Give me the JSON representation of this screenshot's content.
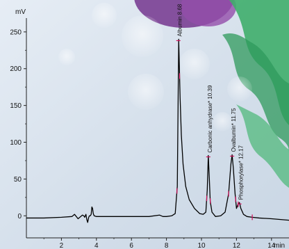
{
  "colors": {
    "background": "#d6e0ec",
    "trace": "#000000",
    "peak_marker": "#d0105a",
    "molecule_green": "#3fae6b",
    "molecule_purple": "#7a3f93"
  },
  "chart_data": {
    "type": "line",
    "title": "",
    "xlabel": "min",
    "ylabel": "mV",
    "xlim": [
      0,
      15
    ],
    "ylim": [
      -30,
      265
    ],
    "x_ticks": [
      2,
      4,
      6,
      8,
      10,
      12,
      14
    ],
    "x_tick_labels": [
      "2",
      "4",
      "6",
      "8",
      "10",
      "12",
      "14"
    ],
    "y_ticks": [
      0,
      50,
      100,
      150,
      200,
      250
    ],
    "y_tick_labels": [
      "0",
      "50",
      "100",
      "150",
      "200",
      "250"
    ],
    "grid": false,
    "series": [
      {
        "x": [
          0.0,
          1.0,
          2.0,
          2.6,
          2.75,
          2.85,
          2.95,
          3.1,
          3.2,
          3.28,
          3.33,
          3.4,
          3.45,
          3.5,
          3.56,
          3.6,
          3.65,
          3.7,
          3.74,
          3.78,
          3.82,
          3.87,
          4.0,
          5.0,
          6.0,
          7.0,
          7.6,
          7.8,
          8.0,
          8.3,
          8.5,
          8.62,
          8.7,
          8.78,
          8.85,
          8.95,
          9.1,
          9.3,
          9.6,
          9.9,
          10.1,
          10.25,
          10.33,
          10.39,
          10.45,
          10.5,
          10.6,
          10.8,
          11.1,
          11.35,
          11.55,
          11.68,
          11.75,
          11.82,
          11.92,
          12.0,
          12.08,
          12.17,
          12.25,
          12.4,
          12.6,
          12.9,
          13.3,
          14.0,
          15.0
        ],
        "y": [
          -3,
          -3,
          -2,
          -1,
          2,
          -1,
          -4,
          -1,
          1,
          0,
          -2,
          2,
          -5,
          -9,
          -2,
          0,
          0,
          2,
          12,
          10,
          3,
          0,
          -1,
          -1,
          -1,
          -1,
          1,
          -1,
          -1,
          0,
          3,
          40,
          240,
          160,
          110,
          70,
          40,
          22,
          10,
          3,
          2,
          5,
          35,
          82,
          50,
          20,
          5,
          -1,
          0,
          5,
          30,
          70,
          83,
          65,
          30,
          10,
          15,
          18,
          10,
          2,
          -1,
          -2,
          -3,
          -4,
          -6
        ]
      }
    ],
    "annotations": [
      {
        "label": "Albumin 8.68",
        "x": 8.68,
        "y": 240
      },
      {
        "label": "Carbonic anhydrase* 10.39",
        "x": 10.39,
        "y": 82
      },
      {
        "label": "Ovalbumin* 11.75",
        "x": 11.75,
        "y": 83
      },
      {
        "label": "Phosphorylase* 12.17",
        "x": 12.17,
        "y": 18
      }
    ],
    "peak_markers": [
      8.6,
      8.75,
      10.3,
      10.5,
      11.55,
      11.95,
      12.1,
      12.9
    ]
  }
}
